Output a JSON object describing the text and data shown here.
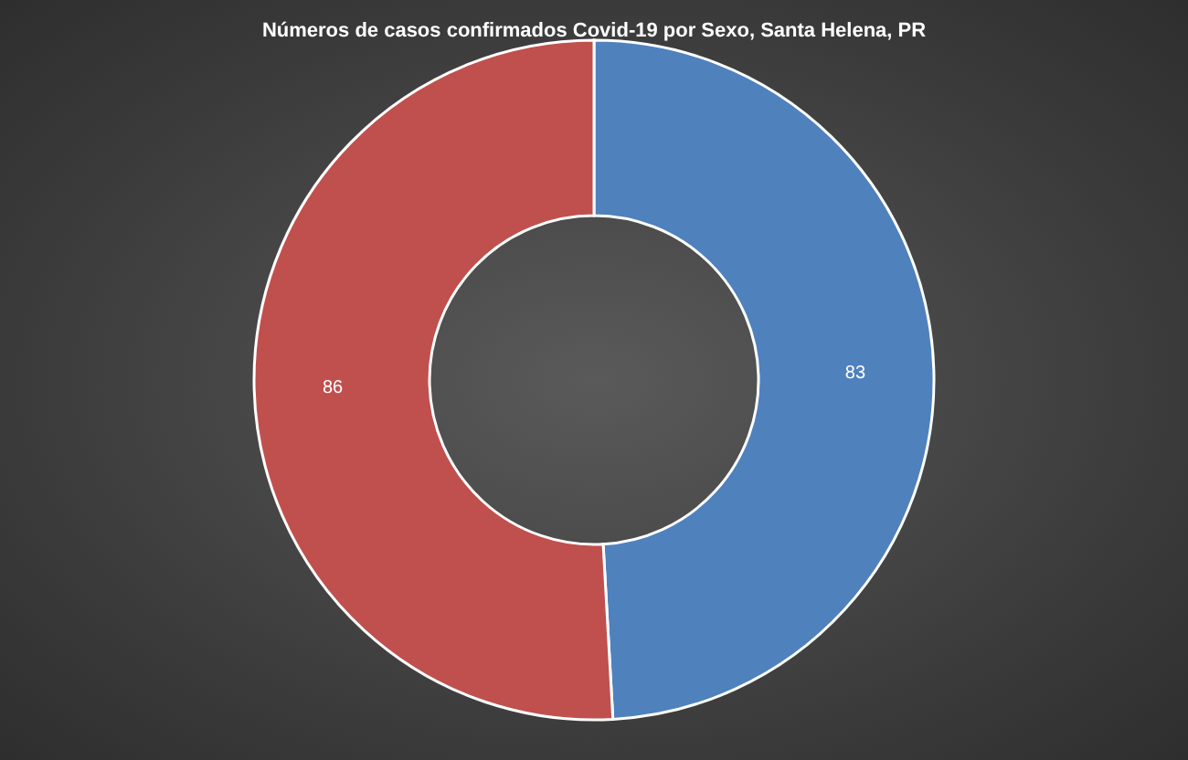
{
  "chart_data": {
    "type": "donut",
    "title": "Números de casos confirmados Covid-19 por Sexo, Santa Helena, PR",
    "categories": [
      null,
      null
    ],
    "values": [
      83,
      86
    ],
    "colors": [
      "#4f81bd",
      "#c0504d"
    ],
    "data_labels": true
  }
}
